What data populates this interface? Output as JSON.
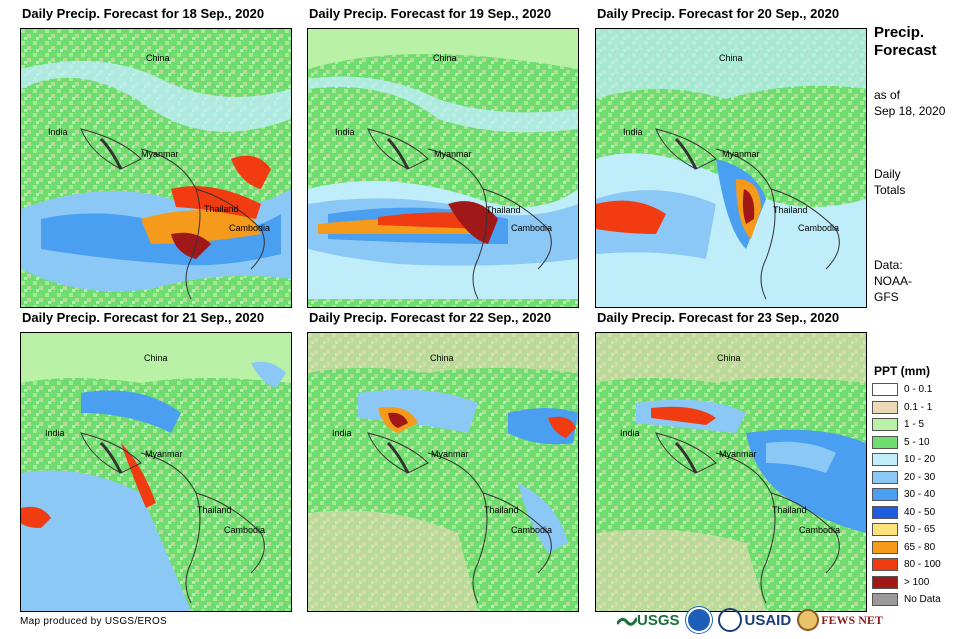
{
  "panels": [
    {
      "title": "Daily Precip. Forecast for 18 Sep., 2020",
      "labels": {
        "china": "China",
        "india": "India",
        "myanmar": "Myanmar",
        "thailand": "Thailand",
        "cambodia": "Cambodia"
      }
    },
    {
      "title": "Daily Precip. Forecast for 19 Sep., 2020",
      "labels": {
        "china": "China",
        "india": "India",
        "myanmar": "Myanmar",
        "thailand": "Thailand",
        "cambodia": "Cambodia"
      }
    },
    {
      "title": "Daily Precip. Forecast for 20 Sep., 2020",
      "labels": {
        "china": "China",
        "india": "India",
        "myanmar": "Myanmar",
        "thailand": "Thailand",
        "cambodia": "Cambodia"
      }
    },
    {
      "title": "Daily Precip. Forecast for 21 Sep., 2020",
      "labels": {
        "china": "China",
        "india": "India",
        "myanmar": "Myanmar",
        "thailand": "Thailand",
        "cambodia": "Cambodia"
      }
    },
    {
      "title": "Daily Precip. Forecast for 22 Sep., 2020",
      "labels": {
        "china": "China",
        "india": "India",
        "myanmar": "Myanmar",
        "thailand": "Thailand",
        "cambodia": "Cambodia"
      }
    },
    {
      "title": "Daily Precip. Forecast for 23 Sep., 2020",
      "labels": {
        "china": "China",
        "india": "India",
        "myanmar": "Myanmar",
        "thailand": "Thailand",
        "cambodia": "Cambodia"
      }
    }
  ],
  "sidebar": {
    "title_line1": "Precip.",
    "title_line2": "Forecast",
    "asof_line1": "as of",
    "asof_line2": "Sep 18, 2020",
    "totals_line1": "Daily",
    "totals_line2": "Totals",
    "data_line1": "Data:",
    "data_line2": "NOAA-",
    "data_line3": "GFS"
  },
  "legend": {
    "title": "PPT (mm)",
    "items": [
      {
        "label": "0 - 0.1",
        "color": "#ffffff"
      },
      {
        "label": "0.1 - 1",
        "color": "#ecd9b8"
      },
      {
        "label": "1 - 5",
        "color": "#b9f2a6"
      },
      {
        "label": "5 - 10",
        "color": "#6fdc6f"
      },
      {
        "label": "10 - 20",
        "color": "#bfeefa"
      },
      {
        "label": "20 - 30",
        "color": "#8cc8f5"
      },
      {
        "label": "30 - 40",
        "color": "#4a9ff0"
      },
      {
        "label": "40 - 50",
        "color": "#1f5de0"
      },
      {
        "label": "50 - 65",
        "color": "#fce27a"
      },
      {
        "label": "65 - 80",
        "color": "#f59a1a"
      },
      {
        "label": "80 - 100",
        "color": "#f03c10"
      },
      {
        "label": "> 100",
        "color": "#a01818"
      },
      {
        "label": "No Data",
        "color": "#9a9a9a"
      }
    ]
  },
  "credit": "Map produced by USGS/EROS",
  "logos": {
    "usgs": "USGS",
    "usaid": "USAID",
    "fewsnet": "FEWS NET"
  }
}
